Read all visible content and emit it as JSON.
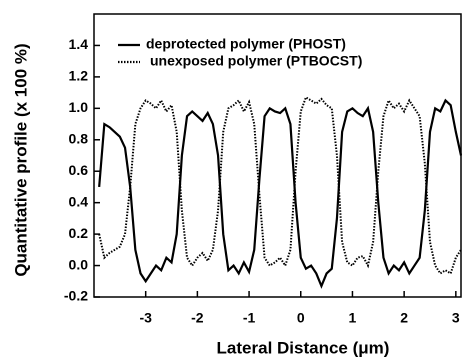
{
  "chart_data": {
    "type": "line",
    "xlabel": "Lateral Distance (μm)",
    "ylabel": "Quantitative profile (x 100 %)",
    "x": [
      -3.9,
      -3.8,
      -3.7,
      -3.6,
      -3.5,
      -3.4,
      -3.3,
      -3.2,
      -3.1,
      -3.0,
      -2.9,
      -2.8,
      -2.7,
      -2.6,
      -2.5,
      -2.4,
      -2.3,
      -2.2,
      -2.1,
      -2.0,
      -1.9,
      -1.8,
      -1.7,
      -1.6,
      -1.5,
      -1.4,
      -1.3,
      -1.2,
      -1.1,
      -1.0,
      -0.9,
      -0.8,
      -0.7,
      -0.6,
      -0.5,
      -0.4,
      -0.3,
      -0.2,
      -0.1,
      0.0,
      0.1,
      0.2,
      0.3,
      0.4,
      0.5,
      0.6,
      0.7,
      0.8,
      0.9,
      1.0,
      1.1,
      1.2,
      1.3,
      1.4,
      1.5,
      1.6,
      1.7,
      1.8,
      1.9,
      2.0,
      2.1,
      2.2,
      2.3,
      2.4,
      2.5,
      2.6,
      2.7,
      2.8,
      2.9,
      3.0,
      3.1
    ],
    "series": [
      {
        "name": "deprotected polymer (PHOST)",
        "color": "#000000",
        "style": "solid",
        "values": [
          0.5,
          0.9,
          0.88,
          0.85,
          0.82,
          0.75,
          0.5,
          0.1,
          -0.05,
          -0.1,
          -0.05,
          0.0,
          -0.03,
          0.05,
          0.02,
          0.2,
          0.7,
          0.95,
          0.98,
          0.95,
          0.92,
          0.97,
          0.9,
          0.7,
          0.2,
          -0.03,
          0.0,
          -0.05,
          0.02,
          -0.04,
          0.1,
          0.55,
          0.95,
          1.0,
          0.98,
          0.97,
          1.0,
          0.9,
          0.4,
          0.05,
          -0.02,
          0.0,
          -0.05,
          -0.13,
          -0.05,
          -0.02,
          0.3,
          0.85,
          0.98,
          1.0,
          0.97,
          0.95,
          1.0,
          0.85,
          0.4,
          0.05,
          -0.05,
          0.0,
          -0.03,
          0.02,
          -0.05,
          0.0,
          0.05,
          0.35,
          0.85,
          1.0,
          0.98,
          1.05,
          1.02,
          0.85,
          0.7
        ]
      },
      {
        "name": "unexposed polymer (PTBOCST)",
        "color": "#000000",
        "style": "dotted",
        "values": [
          0.2,
          0.05,
          0.08,
          0.1,
          0.12,
          0.2,
          0.5,
          0.9,
          1.0,
          1.05,
          1.03,
          1.0,
          1.05,
          0.98,
          1.02,
          0.85,
          0.35,
          0.05,
          0.0,
          0.05,
          0.08,
          0.03,
          0.1,
          0.35,
          0.85,
          1.0,
          1.02,
          1.05,
          0.98,
          1.04,
          0.9,
          0.45,
          0.05,
          0.0,
          0.02,
          0.05,
          0.0,
          0.1,
          0.6,
          0.98,
          1.07,
          1.05,
          1.03,
          1.06,
          1.02,
          1.0,
          0.7,
          0.15,
          0.02,
          0.0,
          0.05,
          0.06,
          0.0,
          0.15,
          0.6,
          0.95,
          1.05,
          1.0,
          1.03,
          0.98,
          1.05,
          1.0,
          0.95,
          0.65,
          0.15,
          0.0,
          -0.05,
          -0.03,
          -0.05,
          0.05,
          0.1
        ]
      }
    ],
    "xlim": [
      -4.0,
      3.1
    ],
    "ylim": [
      -0.2,
      1.6
    ],
    "xticks": [
      -3,
      -2,
      -1,
      0,
      1,
      2,
      3
    ],
    "yticks": [
      {
        "value": -0.2,
        "label": "-0.2"
      },
      {
        "value": 0,
        "label": "0.0"
      },
      {
        "value": 0.2,
        "label": "0.2"
      },
      {
        "value": 0.4,
        "label": "0.4"
      },
      {
        "value": 0.6,
        "label": "0.6"
      },
      {
        "value": 0.8,
        "label": "0.8"
      },
      {
        "value": 1.0,
        "label": "1.0"
      },
      {
        "value": 1.2,
        "label": "1.2"
      },
      {
        "value": 1.4,
        "label": "1.4"
      }
    ],
    "legend": "top-left"
  }
}
